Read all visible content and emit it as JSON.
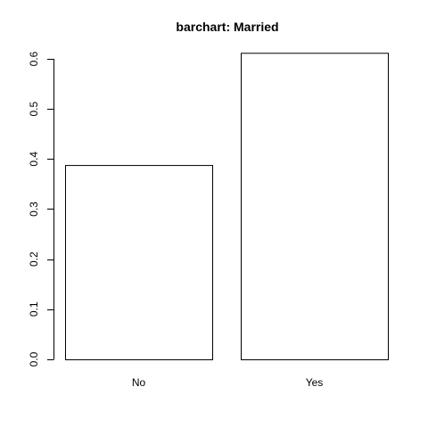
{
  "chart_data": {
    "type": "bar",
    "title": "barchart: Married",
    "categories": [
      "No",
      "Yes"
    ],
    "values": [
      0.388,
      0.612
    ],
    "xlabel": "",
    "ylabel": "",
    "ylim": [
      0,
      0.6
    ],
    "y_ticks": [
      0.0,
      0.1,
      0.2,
      0.3,
      0.4,
      0.5,
      0.6
    ],
    "y_tick_labels": [
      "0.0",
      "0.1",
      "0.2",
      "0.3",
      "0.4",
      "0.5",
      "0.6"
    ],
    "grid": false,
    "legend": "none",
    "colors": {
      "bar_fill": "#ffffff",
      "bar_stroke": "#000000",
      "background": "#ffffff"
    }
  }
}
